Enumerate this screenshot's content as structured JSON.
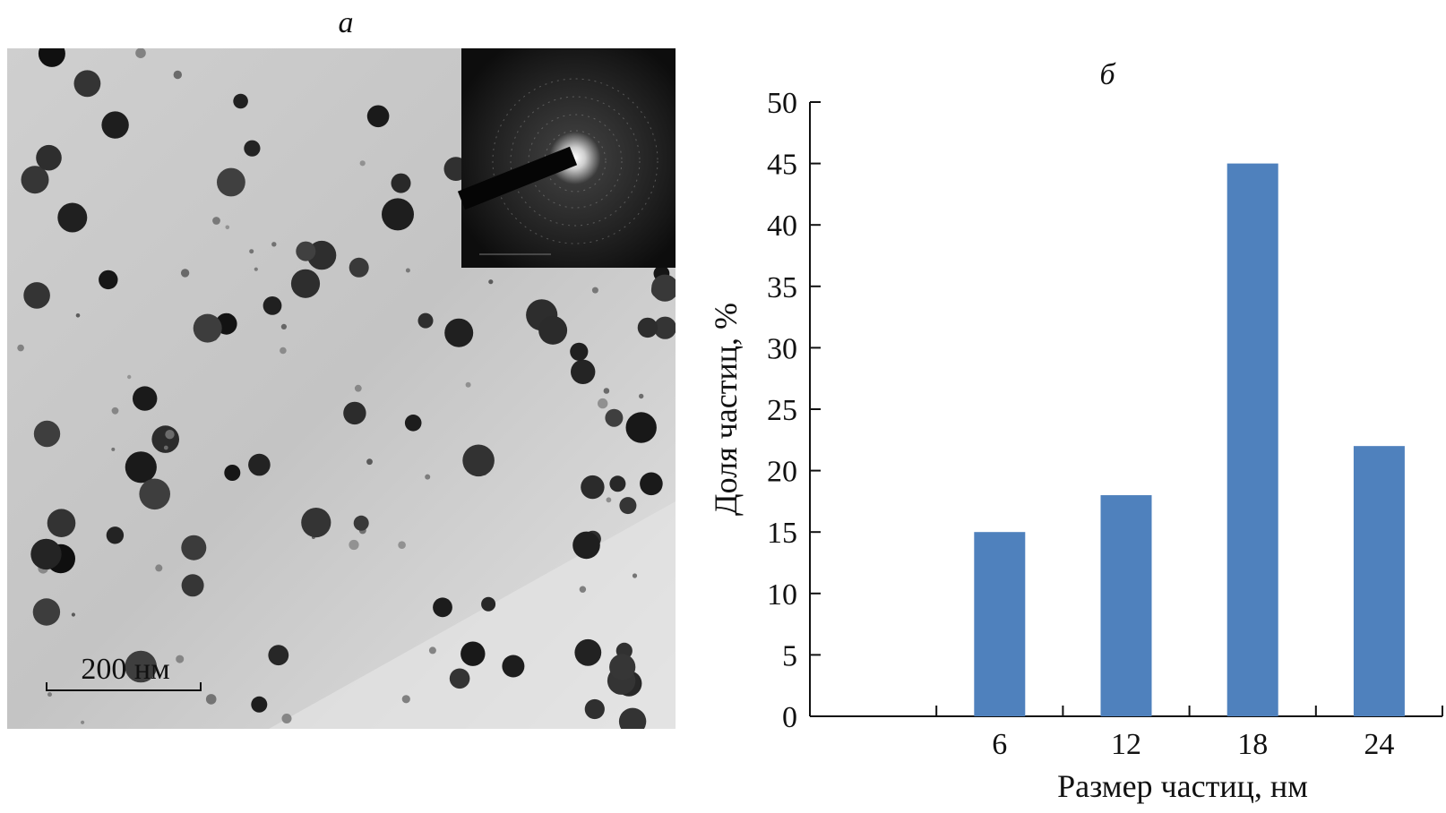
{
  "panel_a": {
    "label": "а",
    "scale_bar_label": "200 нм"
  },
  "chart_data": {
    "type": "bar",
    "panel_label": "б",
    "categories": [
      "",
      "6",
      "12",
      "18",
      "24"
    ],
    "values": [
      null,
      15,
      18,
      45,
      22
    ],
    "xlabel": "Размер частиц, нм",
    "ylabel": "Доля частиц, %",
    "ylim": [
      0,
      50
    ],
    "yticks": [
      0,
      5,
      10,
      15,
      20,
      25,
      30,
      35,
      40,
      45,
      50
    ],
    "grid": false,
    "legend": "none",
    "bar_color": "#4f81bd"
  }
}
